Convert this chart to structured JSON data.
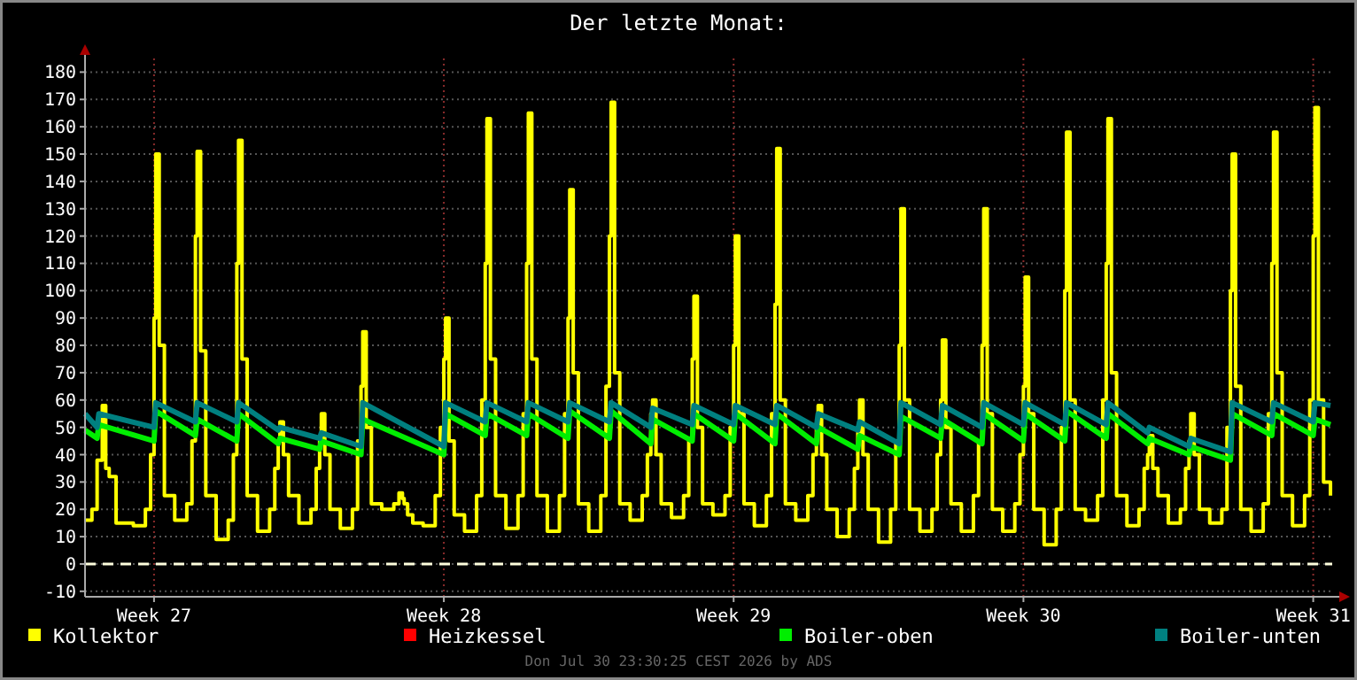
{
  "chart_data": {
    "type": "line",
    "title": "Der letzte Monat:",
    "annotations": [
      "Don Jul 30 23:30:25 CEST 2026 by ADS"
    ],
    "xlim": [
      "2026-06-27T08:00",
      "2026-07-27T11:00"
    ],
    "xticks": [
      {
        "value": "2026-06-29",
        "label": "Week 27"
      },
      {
        "value": "2026-07-06",
        "label": "Week 28"
      },
      {
        "value": "2026-07-13",
        "label": "Week 29"
      },
      {
        "value": "2026-07-20",
        "label": "Week 30"
      },
      {
        "value": "2026-07-27",
        "label": "Week 31"
      }
    ],
    "ylim": [
      -12,
      185
    ],
    "yticks": [
      -10,
      0,
      10,
      20,
      30,
      40,
      50,
      60,
      70,
      80,
      90,
      100,
      110,
      120,
      130,
      140,
      150,
      160,
      170,
      180
    ],
    "grid": true,
    "legend": "bottom",
    "line_style": "solid",
    "ref_lines": [
      {
        "axis": "y",
        "value": 0,
        "color": "#ffffdd",
        "line_style": "dashed"
      }
    ],
    "series": [
      {
        "name": "Kollektor",
        "color": "#ffff00",
        "type": "step",
        "x": [
          "2026-06-27T08:00",
          "2026-06-27T12:00",
          "2026-06-27T15:00",
          "2026-06-27T18:00",
          "2026-06-27T20:00",
          "2026-06-27T22:00",
          "2026-06-28T02:00",
          "2026-06-28T12:00",
          "2026-06-28T19:00",
          "2026-06-28T22:00",
          "2026-06-29T00:00",
          "2026-06-29T01:00",
          "2026-06-29T03:00",
          "2026-06-29T06:00",
          "2026-06-29T12:00",
          "2026-06-29T19:00",
          "2026-06-29T22:00",
          "2026-06-30T00:00",
          "2026-06-30T01:00",
          "2026-06-30T03:00",
          "2026-06-30T06:00",
          "2026-06-30T12:00",
          "2026-06-30T19:00",
          "2026-06-30T22:00",
          "2026-07-01T00:00",
          "2026-07-01T01:00",
          "2026-07-01T03:00",
          "2026-07-01T06:00",
          "2026-07-01T12:00",
          "2026-07-01T19:00",
          "2026-07-01T22:00",
          "2026-07-02T00:00",
          "2026-07-02T01:00",
          "2026-07-02T03:00",
          "2026-07-02T06:00",
          "2026-07-02T12:00",
          "2026-07-02T19:00",
          "2026-07-02T22:00",
          "2026-07-03T00:00",
          "2026-07-03T01:00",
          "2026-07-03T03:00",
          "2026-07-03T06:00",
          "2026-07-03T12:00",
          "2026-07-03T19:00",
          "2026-07-03T22:00",
          "2026-07-04T00:00",
          "2026-07-04T01:00",
          "2026-07-04T03:00",
          "2026-07-04T06:00",
          "2026-07-04T12:00",
          "2026-07-04T19:00",
          "2026-07-04T22:00",
          "2026-07-05T00:00",
          "2026-07-05T01:00",
          "2026-07-05T03:00",
          "2026-07-05T06:00",
          "2026-07-05T12:00",
          "2026-07-05T19:00",
          "2026-07-05T22:00",
          "2026-07-06T00:00",
          "2026-07-06T01:00",
          "2026-07-06T03:00",
          "2026-07-06T06:00",
          "2026-07-06T12:00",
          "2026-07-06T19:00",
          "2026-07-06T22:00",
          "2026-07-07T00:00",
          "2026-07-07T01:00",
          "2026-07-07T03:00",
          "2026-07-07T06:00",
          "2026-07-07T12:00",
          "2026-07-07T19:00",
          "2026-07-07T22:00",
          "2026-07-08T00:00",
          "2026-07-08T01:00",
          "2026-07-08T03:00",
          "2026-07-08T06:00",
          "2026-07-08T12:00",
          "2026-07-08T19:00",
          "2026-07-08T22:00",
          "2026-07-09T00:00",
          "2026-07-09T01:00",
          "2026-07-09T03:00",
          "2026-07-09T06:00",
          "2026-07-09T12:00",
          "2026-07-09T19:00",
          "2026-07-09T22:00",
          "2026-07-10T00:00",
          "2026-07-10T01:00",
          "2026-07-10T03:00",
          "2026-07-10T06:00",
          "2026-07-10T12:00",
          "2026-07-10T19:00",
          "2026-07-10T22:00",
          "2026-07-11T00:00",
          "2026-07-11T01:00",
          "2026-07-11T03:00",
          "2026-07-11T06:00",
          "2026-07-11T12:00",
          "2026-07-11T19:00",
          "2026-07-11T22:00",
          "2026-07-12T00:00",
          "2026-07-12T01:00",
          "2026-07-12T03:00",
          "2026-07-12T06:00",
          "2026-07-12T12:00",
          "2026-07-12T19:00",
          "2026-07-12T22:00",
          "2026-07-13T00:00",
          "2026-07-13T01:00",
          "2026-07-13T03:00",
          "2026-07-13T06:00",
          "2026-07-13T12:00",
          "2026-07-13T19:00",
          "2026-07-13T22:00",
          "2026-07-14T00:00",
          "2026-07-14T01:00",
          "2026-07-14T03:00",
          "2026-07-14T06:00",
          "2026-07-14T12:00",
          "2026-07-14T19:00",
          "2026-07-14T22:00",
          "2026-07-15T00:00",
          "2026-07-15T01:00",
          "2026-07-15T03:00",
          "2026-07-15T06:00",
          "2026-07-15T12:00",
          "2026-07-15T19:00",
          "2026-07-15T22:00",
          "2026-07-16T00:00",
          "2026-07-16T01:00",
          "2026-07-16T03:00",
          "2026-07-16T06:00",
          "2026-07-16T12:00",
          "2026-07-16T19:00",
          "2026-07-16T22:00",
          "2026-07-17T00:00",
          "2026-07-17T01:00",
          "2026-07-17T03:00",
          "2026-07-17T06:00",
          "2026-07-17T12:00",
          "2026-07-17T19:00",
          "2026-07-17T22:00",
          "2026-07-18T00:00",
          "2026-07-18T01:00",
          "2026-07-18T03:00",
          "2026-07-18T06:00",
          "2026-07-18T12:00",
          "2026-07-18T19:00",
          "2026-07-18T22:00",
          "2026-07-19T00:00",
          "2026-07-19T01:00",
          "2026-07-19T03:00",
          "2026-07-19T06:00",
          "2026-07-19T12:00",
          "2026-07-19T19:00",
          "2026-07-19T22:00",
          "2026-07-20T00:00",
          "2026-07-20T01:00",
          "2026-07-20T03:00",
          "2026-07-20T06:00",
          "2026-07-20T12:00",
          "2026-07-20T19:00",
          "2026-07-20T22:00",
          "2026-07-21T00:00",
          "2026-07-21T01:00",
          "2026-07-21T03:00",
          "2026-07-21T06:00",
          "2026-07-21T12:00",
          "2026-07-21T19:00",
          "2026-07-21T22:00",
          "2026-07-22T00:00",
          "2026-07-22T01:00",
          "2026-07-22T03:00",
          "2026-07-22T06:00",
          "2026-07-22T12:00",
          "2026-07-22T19:00",
          "2026-07-22T22:00",
          "2026-07-23T00:00",
          "2026-07-23T01:00",
          "2026-07-23T03:00",
          "2026-07-23T06:00",
          "2026-07-23T12:00",
          "2026-07-23T19:00",
          "2026-07-23T22:00",
          "2026-07-24T00:00",
          "2026-07-24T01:00",
          "2026-07-24T03:00",
          "2026-07-24T06:00",
          "2026-07-24T12:00",
          "2026-07-24T19:00",
          "2026-07-24T22:00",
          "2026-07-25T00:00",
          "2026-07-25T01:00",
          "2026-07-25T03:00",
          "2026-07-25T06:00",
          "2026-07-25T12:00",
          "2026-07-25T19:00",
          "2026-07-25T22:00",
          "2026-07-26T00:00",
          "2026-07-26T01:00",
          "2026-07-26T03:00",
          "2026-07-26T06:00",
          "2026-07-26T12:00",
          "2026-07-26T19:00",
          "2026-07-26T22:00",
          "2026-07-27T00:00",
          "2026-07-27T01:00",
          "2026-07-27T03:00",
          "2026-07-27T06:00",
          "2026-07-27T10:00"
        ],
        "values": [
          16,
          20,
          38,
          58,
          35,
          32,
          15,
          14,
          20,
          40,
          90,
          150,
          80,
          25,
          16,
          22,
          45,
          120,
          151,
          78,
          25,
          9,
          16,
          40,
          110,
          155,
          75,
          25,
          12,
          20,
          35,
          45,
          52,
          40,
          25,
          15,
          20,
          35,
          45,
          55,
          40,
          20,
          13,
          20,
          45,
          65,
          85,
          50,
          22,
          20,
          22,
          26,
          24,
          22,
          18,
          15,
          14,
          25,
          50,
          75,
          90,
          45,
          18,
          12,
          25,
          60,
          110,
          163,
          75,
          25,
          13,
          25,
          55,
          110,
          165,
          75,
          25,
          12,
          25,
          55,
          90,
          137,
          70,
          22,
          12,
          25,
          65,
          120,
          169,
          70,
          22,
          16,
          25,
          40,
          55,
          60,
          40,
          22,
          17,
          25,
          45,
          75,
          98,
          50,
          22,
          18,
          25,
          50,
          80,
          120,
          55,
          22,
          14,
          25,
          55,
          95,
          152,
          60,
          22,
          16,
          25,
          40,
          50,
          58,
          40,
          20,
          10,
          20,
          35,
          48,
          60,
          40,
          20,
          8,
          20,
          45,
          80,
          130,
          60,
          20,
          12,
          20,
          40,
          60,
          82,
          50,
          22,
          12,
          25,
          45,
          80,
          130,
          55,
          20,
          12,
          22,
          40,
          65,
          105,
          55,
          20,
          7,
          20,
          50,
          100,
          158,
          60,
          20,
          16,
          25,
          60,
          110,
          163,
          70,
          25,
          14,
          20,
          35,
          40,
          47,
          35,
          25,
          15,
          20,
          35,
          45,
          55,
          40,
          20,
          15,
          20,
          50,
          100,
          150,
          65,
          20,
          12,
          22,
          55,
          110,
          158,
          70,
          25,
          14,
          25,
          60,
          120,
          167,
          60,
          30,
          25
        ]
      },
      {
        "name": "Heizkessel",
        "color": "#ff0000"
      },
      {
        "name": "Boiler-oben",
        "color": "#00ee00",
        "x": [
          "2026-06-27T08:00",
          "2026-06-27T15:00",
          "2026-06-27T16:00",
          "2026-06-29T00:00",
          "2026-06-29T01:00",
          "2026-06-30T00:00",
          "2026-06-30T01:00",
          "2026-07-01T00:00",
          "2026-07-01T01:00",
          "2026-07-02T00:00",
          "2026-07-02T01:00",
          "2026-07-03T00:00",
          "2026-07-03T01:00",
          "2026-07-04T00:00",
          "2026-07-04T01:00",
          "2026-07-06T00:00",
          "2026-07-06T01:00",
          "2026-07-07T00:00",
          "2026-07-07T01:00",
          "2026-07-08T00:00",
          "2026-07-08T01:00",
          "2026-07-09T00:00",
          "2026-07-09T01:00",
          "2026-07-10T00:00",
          "2026-07-10T01:00",
          "2026-07-11T00:00",
          "2026-07-11T01:00",
          "2026-07-12T00:00",
          "2026-07-12T01:00",
          "2026-07-13T00:00",
          "2026-07-13T01:00",
          "2026-07-14T00:00",
          "2026-07-14T01:00",
          "2026-07-15T00:00",
          "2026-07-15T01:00",
          "2026-07-16T00:00",
          "2026-07-16T01:00",
          "2026-07-17T00:00",
          "2026-07-17T01:00",
          "2026-07-18T00:00",
          "2026-07-18T01:00",
          "2026-07-19T00:00",
          "2026-07-19T01:00",
          "2026-07-20T00:00",
          "2026-07-20T01:00",
          "2026-07-21T00:00",
          "2026-07-21T01:00",
          "2026-07-22T00:00",
          "2026-07-22T01:00",
          "2026-07-23T00:00",
          "2026-07-23T01:00",
          "2026-07-24T00:00",
          "2026-07-24T01:00",
          "2026-07-25T00:00",
          "2026-07-25T01:00",
          "2026-07-26T00:00",
          "2026-07-26T01:00",
          "2026-07-27T00:00",
          "2026-07-27T01:00",
          "2026-07-27T10:00"
        ],
        "values": [
          49,
          46,
          51,
          45,
          56,
          47,
          53,
          45,
          55,
          44,
          46,
          42,
          45,
          40,
          53,
          40,
          55,
          47,
          55,
          47,
          55,
          46,
          56,
          46,
          56,
          44,
          53,
          45,
          55,
          45,
          55,
          44,
          55,
          44,
          50,
          42,
          47,
          40,
          54,
          46,
          53,
          44,
          55,
          45,
          55,
          45,
          56,
          46,
          55,
          44,
          46,
          40,
          43,
          38,
          55,
          47,
          55,
          47,
          53,
          51
        ]
      },
      {
        "name": "Boiler-unten",
        "color": "#008080",
        "x": [
          "2026-06-27T08:00",
          "2026-06-27T15:00",
          "2026-06-27T16:00",
          "2026-06-29T00:00",
          "2026-06-29T01:00",
          "2026-06-30T00:00",
          "2026-06-30T01:00",
          "2026-07-01T00:00",
          "2026-07-01T01:00",
          "2026-07-02T00:00",
          "2026-07-02T01:00",
          "2026-07-03T00:00",
          "2026-07-03T01:00",
          "2026-07-04T00:00",
          "2026-07-04T01:00",
          "2026-07-06T00:00",
          "2026-07-06T01:00",
          "2026-07-07T00:00",
          "2026-07-07T01:00",
          "2026-07-08T00:00",
          "2026-07-08T01:00",
          "2026-07-09T00:00",
          "2026-07-09T01:00",
          "2026-07-10T00:00",
          "2026-07-10T01:00",
          "2026-07-11T00:00",
          "2026-07-11T01:00",
          "2026-07-12T00:00",
          "2026-07-12T01:00",
          "2026-07-13T00:00",
          "2026-07-13T01:00",
          "2026-07-14T00:00",
          "2026-07-14T01:00",
          "2026-07-15T00:00",
          "2026-07-15T01:00",
          "2026-07-16T00:00",
          "2026-07-16T01:00",
          "2026-07-17T00:00",
          "2026-07-17T01:00",
          "2026-07-18T00:00",
          "2026-07-18T01:00",
          "2026-07-19T00:00",
          "2026-07-19T01:00",
          "2026-07-20T00:00",
          "2026-07-20T01:00",
          "2026-07-21T00:00",
          "2026-07-21T01:00",
          "2026-07-22T00:00",
          "2026-07-22T01:00",
          "2026-07-23T00:00",
          "2026-07-23T01:00",
          "2026-07-24T00:00",
          "2026-07-24T01:00",
          "2026-07-25T00:00",
          "2026-07-25T01:00",
          "2026-07-26T00:00",
          "2026-07-26T01:00",
          "2026-07-27T00:00",
          "2026-07-27T01:00",
          "2026-07-27T10:00"
        ],
        "values": [
          55,
          50,
          55,
          50,
          59,
          52,
          59,
          52,
          59,
          49,
          50,
          46,
          48,
          43,
          59,
          43,
          59,
          52,
          59,
          52,
          59,
          52,
          59,
          52,
          59,
          50,
          57,
          51,
          58,
          51,
          58,
          51,
          58,
          50,
          55,
          49,
          52,
          44,
          59,
          51,
          58,
          50,
          59,
          51,
          59,
          51,
          59,
          51,
          59,
          48,
          50,
          43,
          46,
          41,
          59,
          52,
          59,
          52,
          59,
          58
        ]
      }
    ]
  }
}
